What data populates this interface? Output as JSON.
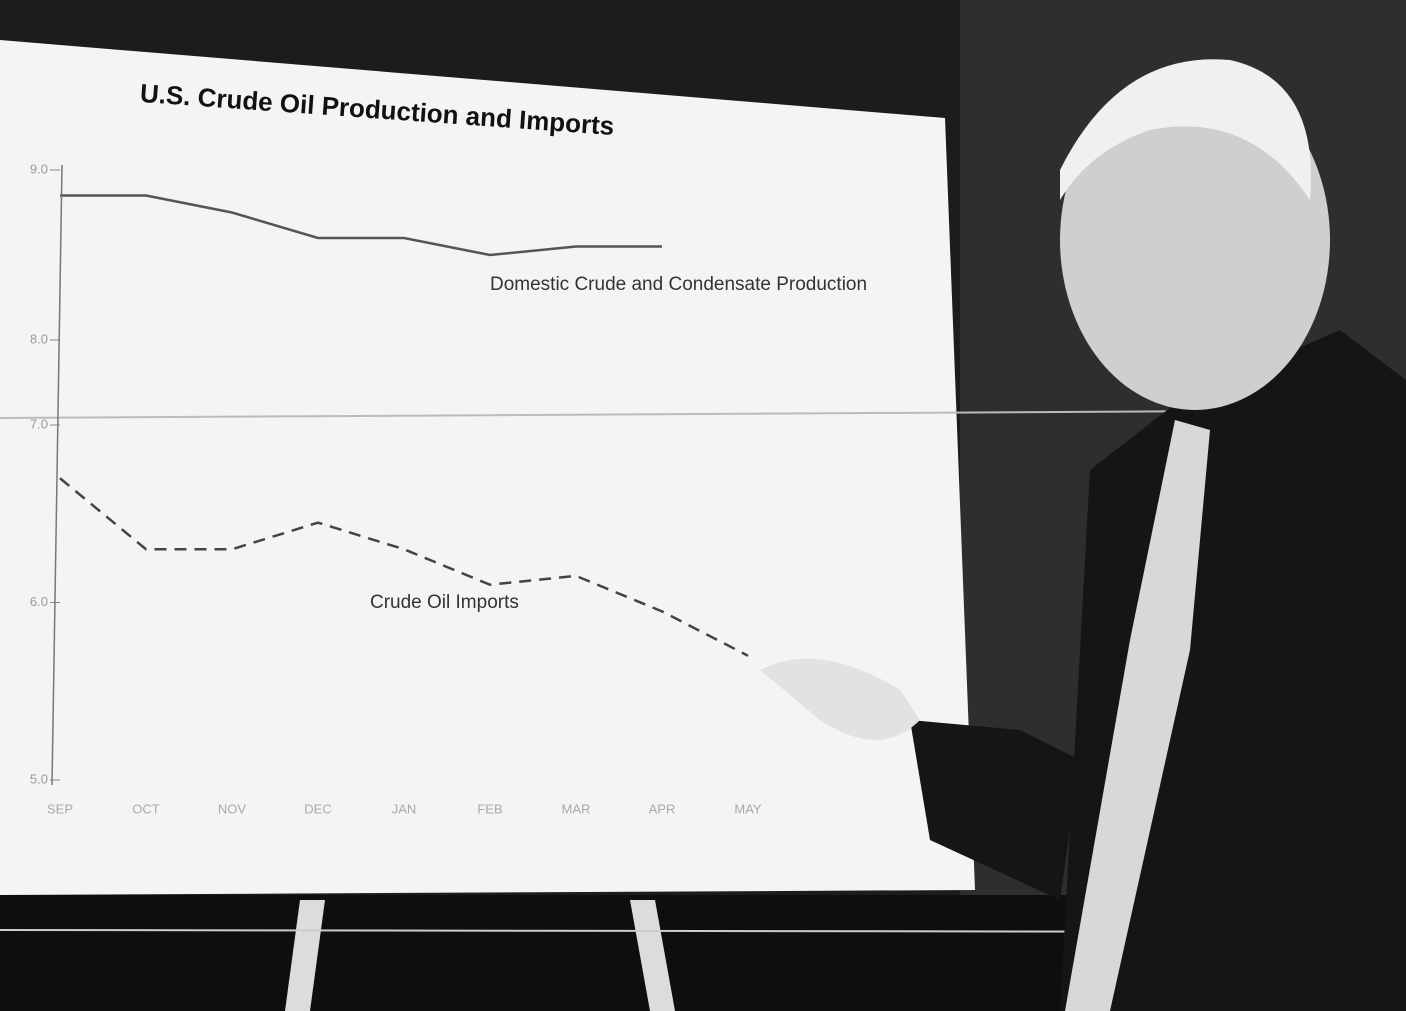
{
  "chart_data": [
    {
      "type": "line",
      "title": "U.S. Crude Oil Production and Imports",
      "categories": [
        "SEP",
        "OCT",
        "NOV",
        "DEC",
        "JAN",
        "FEB",
        "MAR",
        "APR",
        "MAY"
      ],
      "series": [
        {
          "name": "Domestic Crude and Condensate Production",
          "color": "#555555",
          "line_style": "solid",
          "values": [
            8.85,
            8.85,
            8.75,
            8.6,
            8.6,
            8.5,
            8.55,
            8.55,
            null
          ]
        }
      ],
      "ylim": [
        8,
        9
      ],
      "yticks": [
        {
          "value": 8,
          "label": "8.0"
        },
        {
          "value": 9,
          "label": "9.0"
        }
      ]
    },
    {
      "type": "line",
      "categories": [
        "SEP",
        "OCT",
        "NOV",
        "DEC",
        "JAN",
        "FEB",
        "MAR",
        "APR",
        "MAY"
      ],
      "series": [
        {
          "name": "Crude Oil Imports",
          "color": "#444444",
          "line_style": "dashed",
          "values": [
            6.7,
            6.3,
            6.3,
            6.45,
            6.3,
            6.1,
            6.15,
            5.95,
            5.7
          ]
        }
      ],
      "ylim": [
        5,
        7
      ],
      "yticks": [
        {
          "value": 5,
          "label": "5.0"
        },
        {
          "value": 6,
          "label": "6.0"
        },
        {
          "value": 7,
          "label": "7.0"
        }
      ]
    }
  ]
}
